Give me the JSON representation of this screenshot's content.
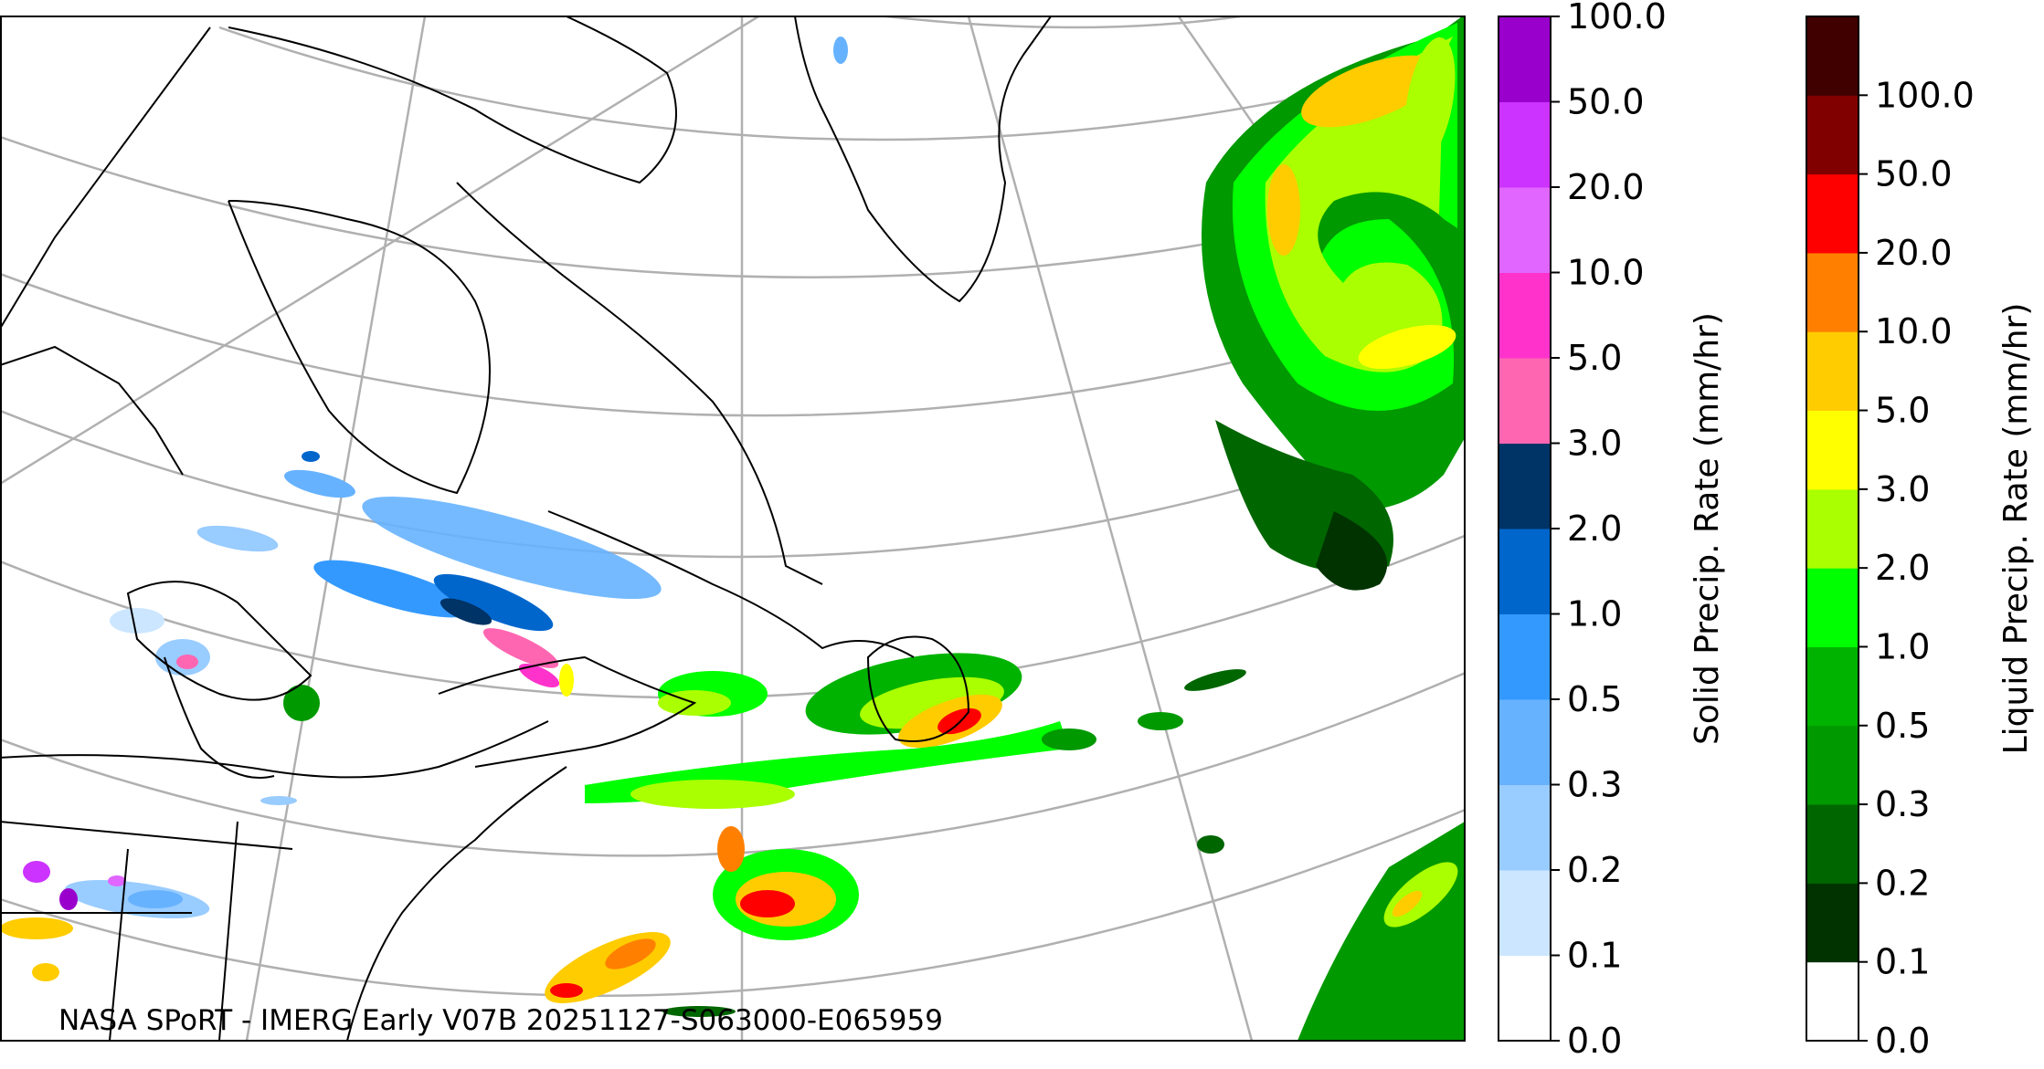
{
  "map": {
    "credit": "NASA SPoRT - IMERG Early V07B 20251127-S063000-E065959"
  },
  "colorbars": [
    {
      "id": "solid",
      "label": "Solid Precip. Rate (mm/hr)",
      "ticks": [
        "0.0",
        "0.1",
        "0.2",
        "0.3",
        "0.5",
        "1.0",
        "2.0",
        "3.0",
        "5.0",
        "10.0",
        "20.0",
        "50.0",
        "100.0"
      ],
      "colors": [
        "#ffffff",
        "#cce6ff",
        "#99ccff",
        "#66b2ff",
        "#3399ff",
        "#0066cc",
        "#003366",
        "#ff66b2",
        "#ff33cc",
        "#e066ff",
        "#cc33ff",
        "#9900cc"
      ]
    },
    {
      "id": "liquid",
      "label": "Liquid Precip. Rate (mm/hr)",
      "ticks": [
        "0.0",
        "0.1",
        "0.2",
        "0.3",
        "0.5",
        "1.0",
        "2.0",
        "3.0",
        "5.0",
        "10.0",
        "20.0",
        "50.0",
        "100.0"
      ],
      "colors": [
        "#ffffff",
        "#003300",
        "#006600",
        "#009900",
        "#00b300",
        "#00ff00",
        "#aaff00",
        "#ffff00",
        "#ffcc00",
        "#ff8000",
        "#ff0000",
        "#800000",
        "#400000"
      ]
    }
  ]
}
